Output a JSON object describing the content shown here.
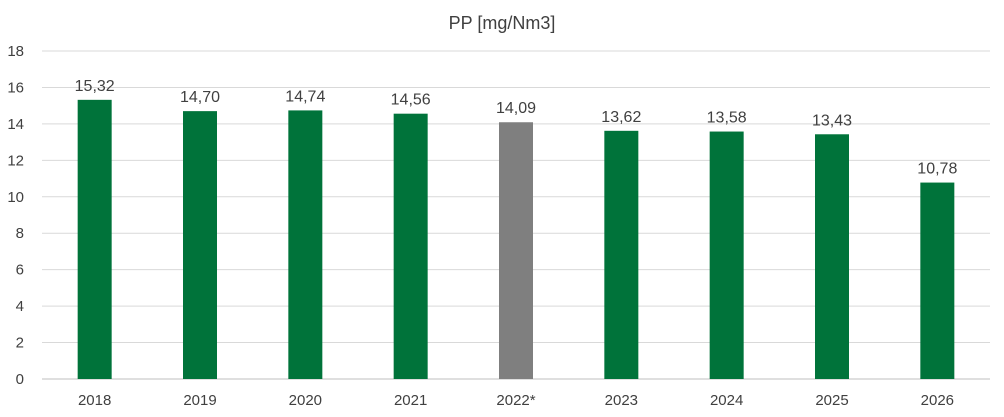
{
  "chart_data": {
    "type": "bar",
    "title": "PP [mg/Nm3]",
    "xlabel": "",
    "ylabel": "",
    "categories": [
      "2018",
      "2019",
      "2020",
      "2021",
      "2022*",
      "2023",
      "2024",
      "2025",
      "2026"
    ],
    "values": [
      15.32,
      14.7,
      14.74,
      14.56,
      14.09,
      13.62,
      13.58,
      13.43,
      10.78
    ],
    "data_labels": [
      "15,32",
      "14,70",
      "14,74",
      "14,56",
      "14,09",
      "13,62",
      "13,58",
      "13,43",
      "10,78"
    ],
    "ylim": [
      0,
      18
    ],
    "yticks": [
      0,
      2,
      4,
      6,
      8,
      10,
      12,
      14,
      16,
      18
    ],
    "grid": true,
    "legend": "none",
    "colors": {
      "bar": "#00733A",
      "highlight_bar": "#7F7F7F",
      "grid": "#D9D9D9",
      "text": "#404040"
    },
    "highlight_index": 4
  }
}
